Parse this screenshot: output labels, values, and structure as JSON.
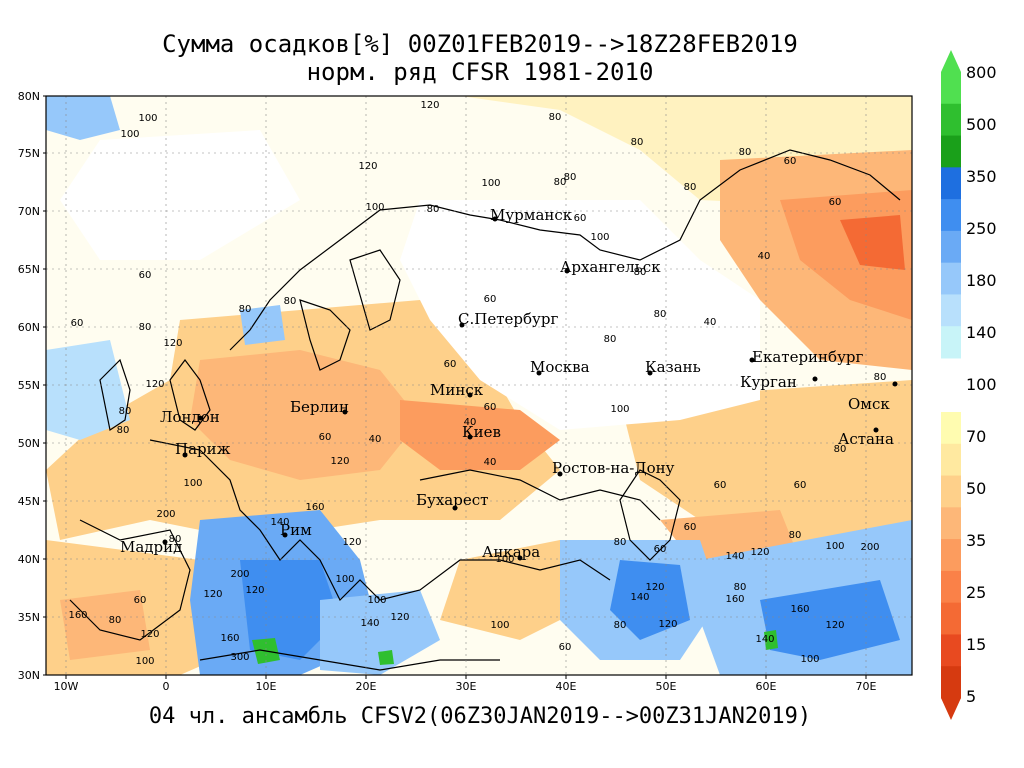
{
  "title": {
    "line1": "Сумма осадков[%] 00Z01FEB2019-->18Z28FEB2019",
    "line2": "норм. ряд CFSR 1981-2010"
  },
  "subtitle": "04 чл. ансамбль CFSV2(06Z30JAN2019-->00Z31JAN2019)",
  "map": {
    "lat_labels": [
      "80N",
      "75N",
      "70N",
      "65N",
      "60N",
      "55N",
      "50N",
      "45N",
      "40N",
      "35N",
      "30N"
    ],
    "lon_labels": [
      "10W",
      "0",
      "10E",
      "20E",
      "30E",
      "40E",
      "50E",
      "60E",
      "70E"
    ],
    "cities": [
      {
        "name": "Мурманск"
      },
      {
        "name": "Архангельск"
      },
      {
        "name": "С.Петербург"
      },
      {
        "name": "Москва"
      },
      {
        "name": "Казань"
      },
      {
        "name": "Екатеринбург"
      },
      {
        "name": "Курган"
      },
      {
        "name": "Омск"
      },
      {
        "name": "Астана"
      },
      {
        "name": "Минск"
      },
      {
        "name": "Берлин"
      },
      {
        "name": "Лондон"
      },
      {
        "name": "Париж"
      },
      {
        "name": "Киев"
      },
      {
        "name": "Ростов-на-Дону"
      },
      {
        "name": "Бухарест"
      },
      {
        "name": "Рим"
      },
      {
        "name": "Мадрид"
      },
      {
        "name": "Анкара"
      }
    ],
    "contour_labels": [
      "100",
      "80",
      "120",
      "100",
      "80",
      "120",
      "80",
      "60",
      "80",
      "100",
      "80",
      "80",
      "100",
      "80",
      "60",
      "40",
      "100",
      "80",
      "60",
      "60",
      "80",
      "80",
      "80",
      "60",
      "40",
      "80",
      "60",
      "80",
      "120",
      "60",
      "60",
      "80",
      "40",
      "80",
      "80",
      "100",
      "120",
      "80",
      "60",
      "40",
      "120",
      "40",
      "60",
      "60",
      "80",
      "60",
      "100",
      "200",
      "160",
      "140",
      "120",
      "100",
      "80",
      "200",
      "120",
      "120",
      "160",
      "300",
      "100",
      "120",
      "140",
      "120",
      "160",
      "100",
      "60",
      "80",
      "100",
      "60",
      "80",
      "120",
      "140",
      "80",
      "140",
      "100",
      "120",
      "200",
      "160",
      "140",
      "160",
      "120",
      "100",
      "60",
      "80",
      "120",
      "100"
    ]
  },
  "legend": {
    "labels": [
      "800",
      "500",
      "350",
      "250",
      "180",
      "140",
      "100",
      "70",
      "50",
      "35",
      "25",
      "15",
      "5"
    ],
    "colors": {
      "upper": [
        "#50e050",
        "#2fbf2f",
        "#1aa01a",
        "#1e6fe0",
        "#3f8ef0",
        "#6aaaf5",
        "#96c8fa",
        "#b8e0fc",
        "#c8f4f8"
      ],
      "lower": [
        "#fffcb0",
        "#ffe9a0",
        "#fed08a",
        "#fdb778",
        "#fc9c5e",
        "#fa8148",
        "#f46a34",
        "#e84a20",
        "#d63a10"
      ]
    }
  }
}
